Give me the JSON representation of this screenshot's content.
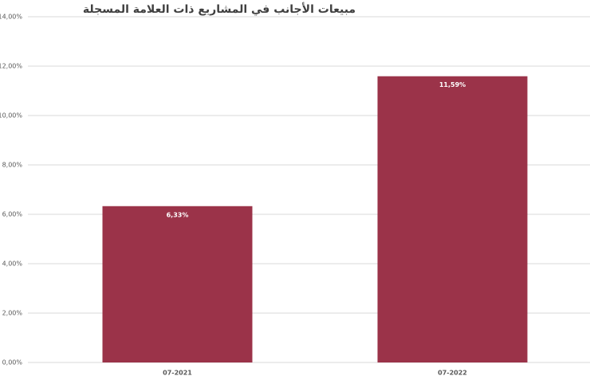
{
  "chart_data": {
    "type": "bar",
    "title": "مبيعات الأجانب في المشاريع ذات العلامة المسجلة",
    "categories": [
      "07-2021",
      "07-2022"
    ],
    "values": [
      6.33,
      11.59
    ],
    "value_labels": [
      "6,33%",
      "11,59%"
    ],
    "color": "#9b3349",
    "ylim": [
      0,
      14
    ],
    "yticks": [
      {
        "value": 0,
        "label": "0,00%"
      },
      {
        "value": 2,
        "label": "2,00%"
      },
      {
        "value": 4,
        "label": "4,00%"
      },
      {
        "value": 6,
        "label": "6,00%"
      },
      {
        "value": 8,
        "label": "8,00%"
      },
      {
        "value": 10,
        "label": "10,00%"
      },
      {
        "value": 12,
        "label": "12,00%"
      },
      {
        "value": 14,
        "label": "14,00%"
      }
    ],
    "grid": true
  }
}
